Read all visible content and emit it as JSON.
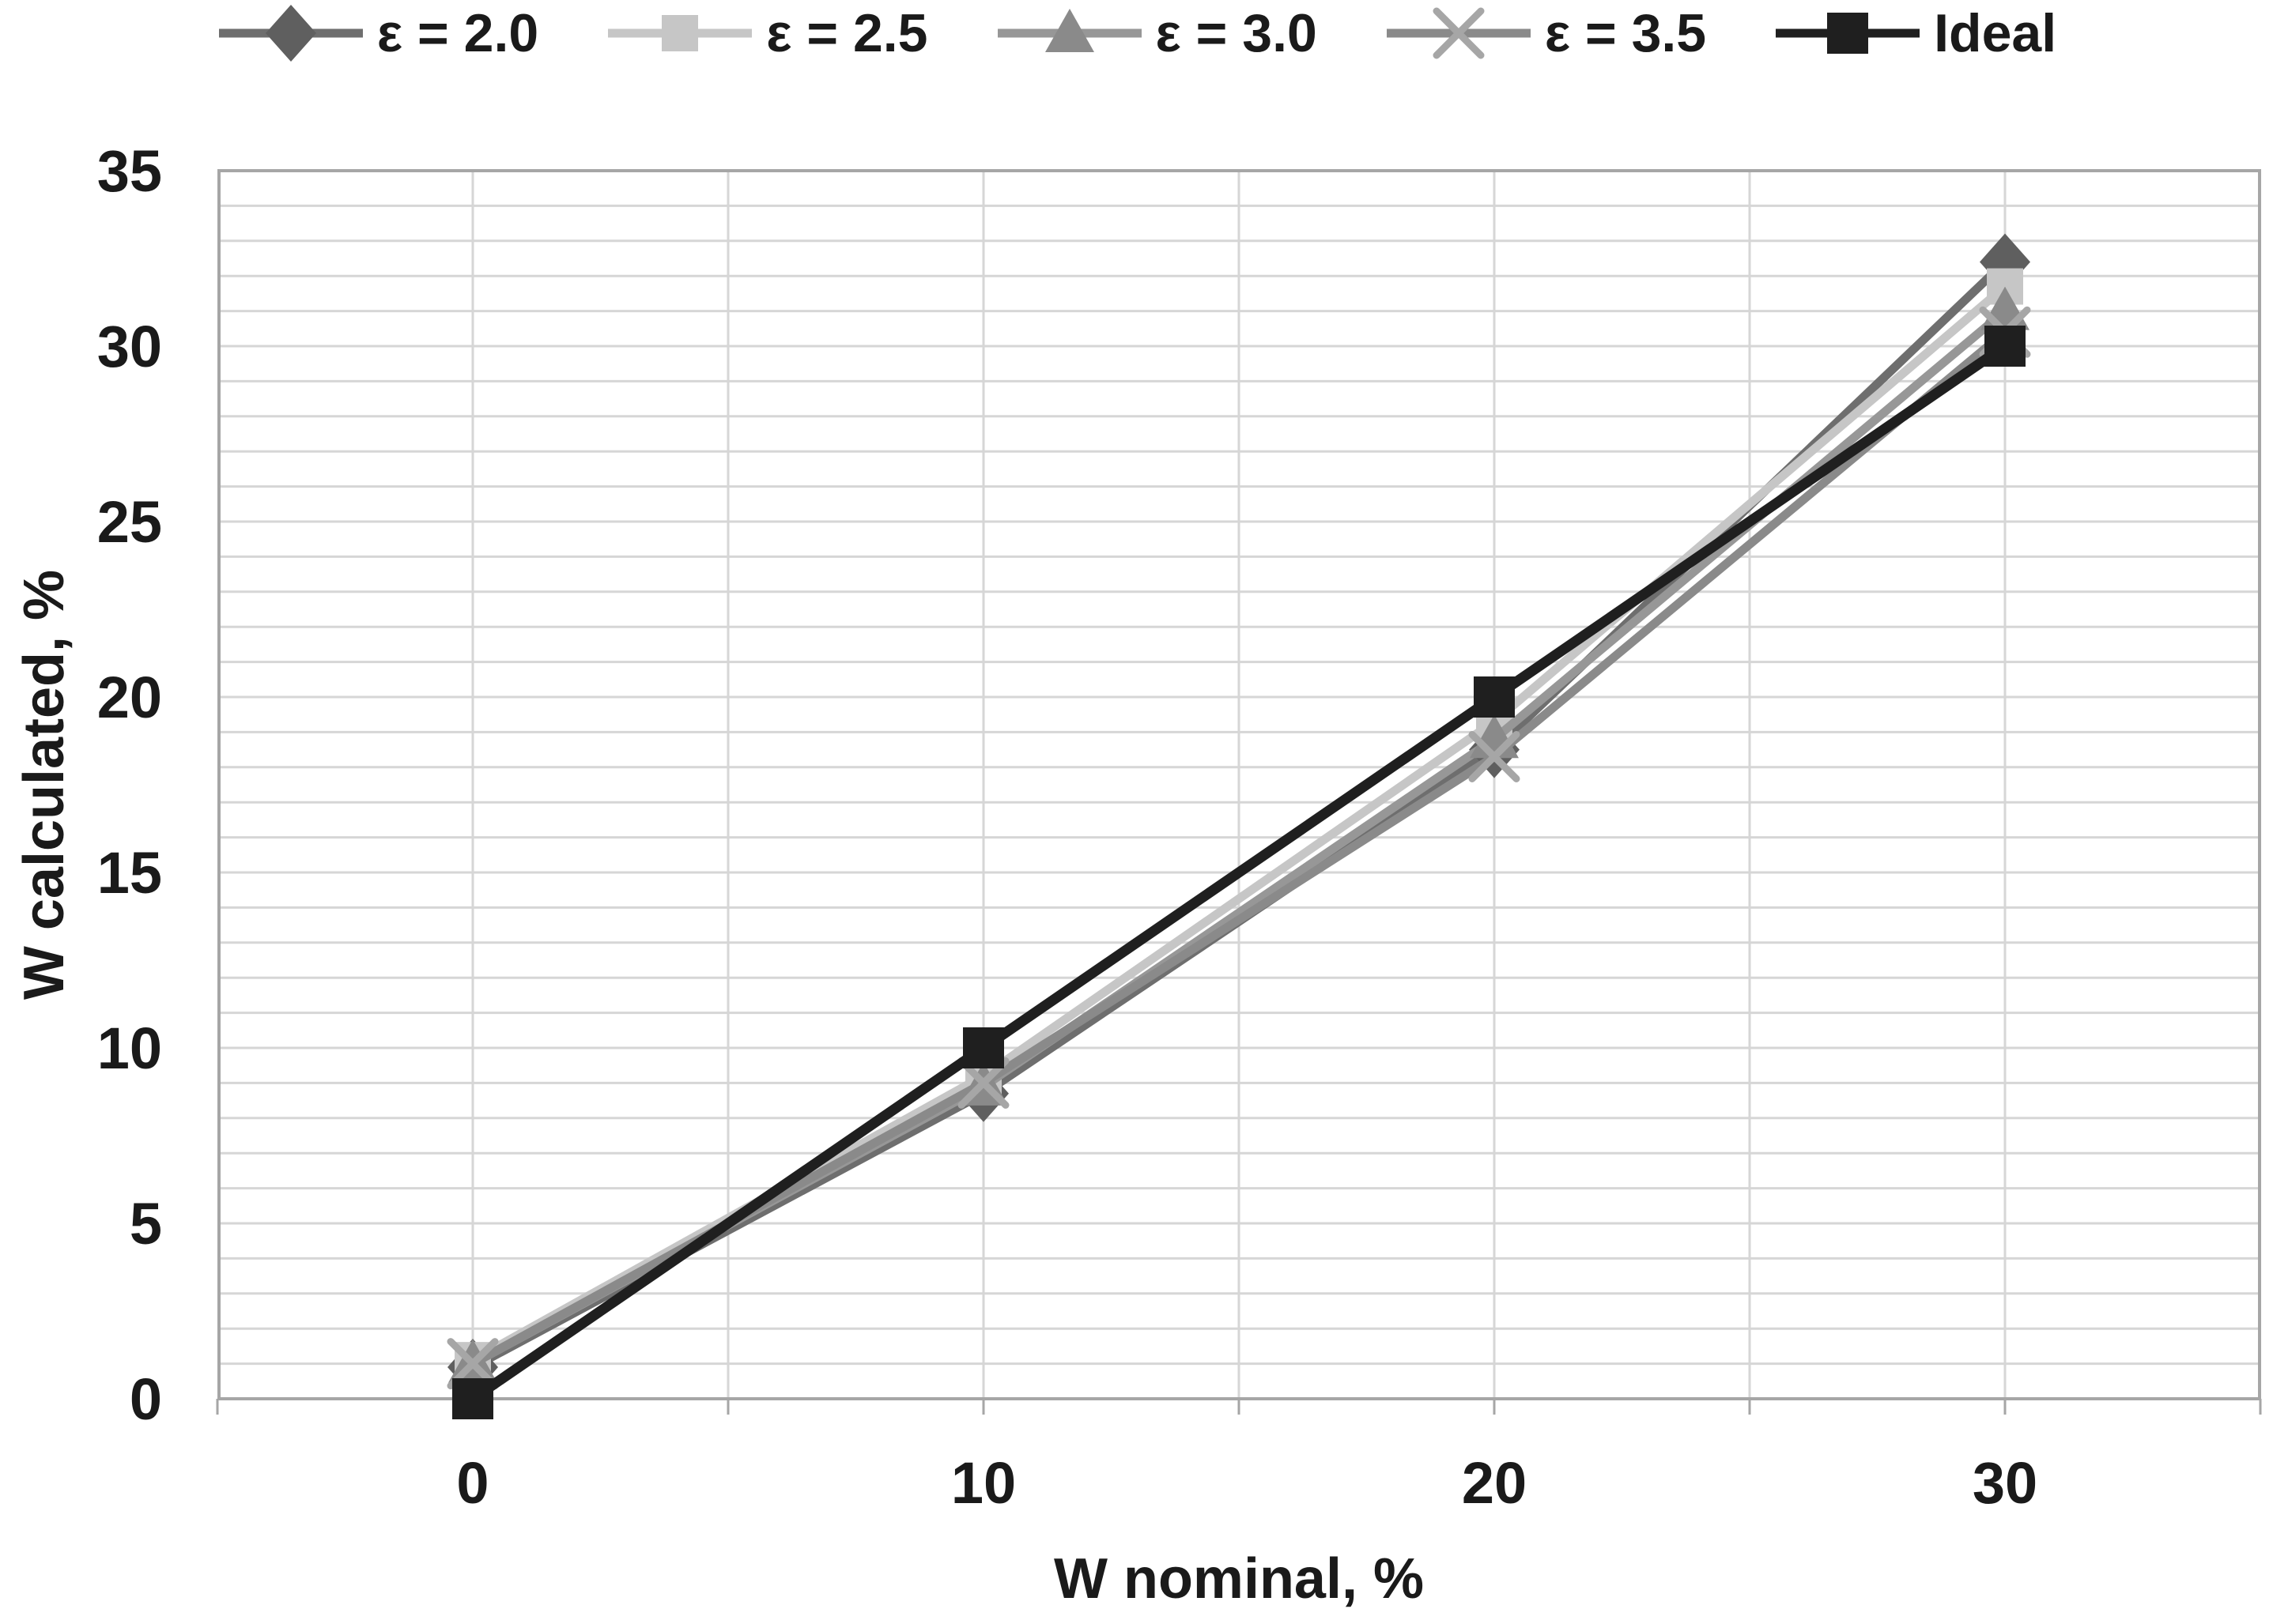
{
  "chart_data": {
    "type": "line",
    "title": "",
    "xlabel": "W nominal, %",
    "ylabel": "W calculated, %",
    "x": [
      0,
      10,
      20,
      30
    ],
    "x_ticks": [
      "0",
      "10",
      "20",
      "30"
    ],
    "y_ticks": [
      "0",
      "5",
      "10",
      "15",
      "20",
      "25",
      "30",
      "35"
    ],
    "xlim": [
      -5,
      35
    ],
    "ylim": [
      0,
      35
    ],
    "grid": {
      "horizontal_minor_step": 1,
      "vertical_step": 5,
      "line_color": "#d6d6d6",
      "border_color": "#a6a6a6",
      "background": "#ffffff"
    },
    "legend_position": "top",
    "series": [
      {
        "name": "ε = 2.0",
        "marker": "diamond",
        "line_color": "#6e6e6e",
        "marker_color": "#5f5f5f",
        "line_width": 11,
        "values": [
          0.9,
          8.7,
          18.5,
          32.4
        ]
      },
      {
        "name": "ε = 2.5",
        "marker": "square",
        "line_color": "#c6c6c6",
        "marker_color": "#c6c6c6",
        "line_width": 11,
        "values": [
          1.1,
          9.2,
          19.3,
          31.7
        ]
      },
      {
        "name": "ε = 3.0",
        "marker": "triangle",
        "line_color": "#979797",
        "marker_color": "#8a8a8a",
        "line_width": 11,
        "values": [
          1.0,
          8.9,
          18.8,
          31.0
        ]
      },
      {
        "name": "ε = 3.5",
        "marker": "x",
        "line_color": "#8a8a8a",
        "marker_color": "#a6a6a6",
        "line_width": 11,
        "values": [
          1.0,
          9.0,
          18.3,
          30.4
        ]
      },
      {
        "name": "Ideal",
        "marker": "filled-square",
        "line_color": "#1f1f1f",
        "marker_color": "#1f1f1f",
        "line_width": 13,
        "values": [
          0,
          10,
          20,
          30
        ]
      }
    ]
  }
}
